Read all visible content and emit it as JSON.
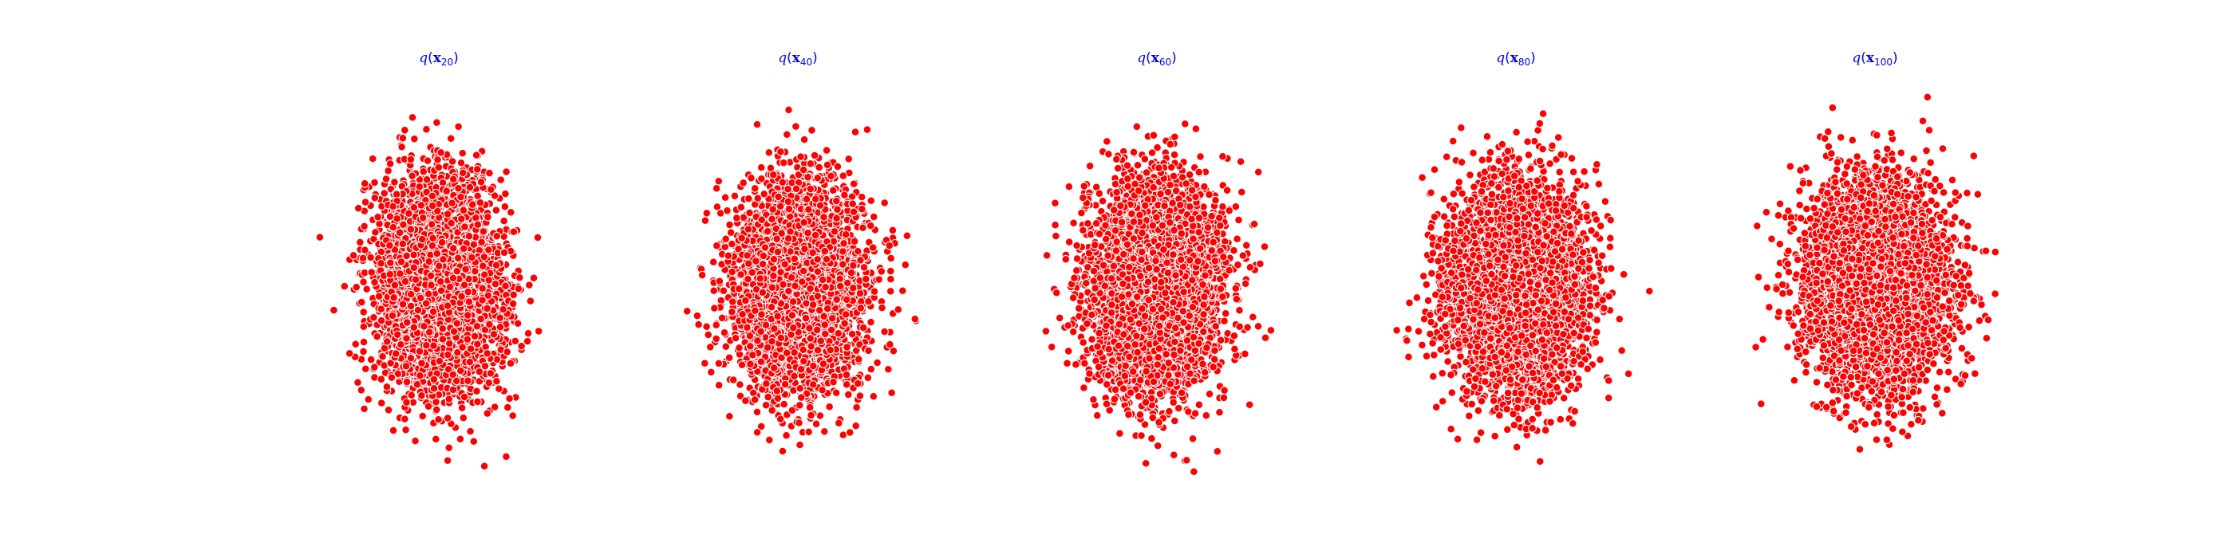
{
  "chart_data": [
    {
      "type": "scatter",
      "title_parts": {
        "func": "q",
        "var": "x",
        "step": "20"
      },
      "title": "q(x20)",
      "distribution": {
        "mean_x": 0.0,
        "mean_y": 0.0,
        "std_x": 0.85,
        "std_y": 1.0
      },
      "n_points": 5000,
      "seed": 20,
      "xlim": [
        -4,
        4
      ],
      "ylim": [
        -4,
        4
      ],
      "axes_visible": false
    },
    {
      "type": "scatter",
      "title_parts": {
        "func": "q",
        "var": "x",
        "step": "40"
      },
      "title": "q(x40)",
      "distribution": {
        "mean_x": 0.0,
        "mean_y": 0.0,
        "std_x": 0.9,
        "std_y": 1.0
      },
      "n_points": 5000,
      "seed": 40,
      "xlim": [
        -4,
        4
      ],
      "ylim": [
        -4,
        4
      ],
      "axes_visible": false
    },
    {
      "type": "scatter",
      "title_parts": {
        "func": "q",
        "var": "x",
        "step": "60"
      },
      "title": "q(x60)",
      "distribution": {
        "mean_x": 0.0,
        "mean_y": 0.0,
        "std_x": 0.93,
        "std_y": 1.0
      },
      "n_points": 5000,
      "seed": 60,
      "xlim": [
        -4,
        4
      ],
      "ylim": [
        -4,
        4
      ],
      "axes_visible": false
    },
    {
      "type": "scatter",
      "title_parts": {
        "func": "q",
        "var": "x",
        "step": "80"
      },
      "title": "q(x80)",
      "distribution": {
        "mean_x": 0.0,
        "mean_y": 0.0,
        "std_x": 0.96,
        "std_y": 1.0
      },
      "n_points": 5000,
      "seed": 80,
      "xlim": [
        -4,
        4
      ],
      "ylim": [
        -4,
        4
      ],
      "axes_visible": false
    },
    {
      "type": "scatter",
      "title_parts": {
        "func": "q",
        "var": "x",
        "step": "100"
      },
      "title": "q(x100)",
      "distribution": {
        "mean_x": 0.0,
        "mean_y": 0.0,
        "std_x": 1.0,
        "std_y": 1.0
      },
      "n_points": 5000,
      "seed": 100,
      "xlim": [
        -4,
        4
      ],
      "ylim": [
        -4,
        4
      ],
      "axes_visible": false
    }
  ],
  "colors": {
    "point_fill": "#ff0000",
    "point_edge": "#ffffff",
    "title": "#0000ff"
  }
}
